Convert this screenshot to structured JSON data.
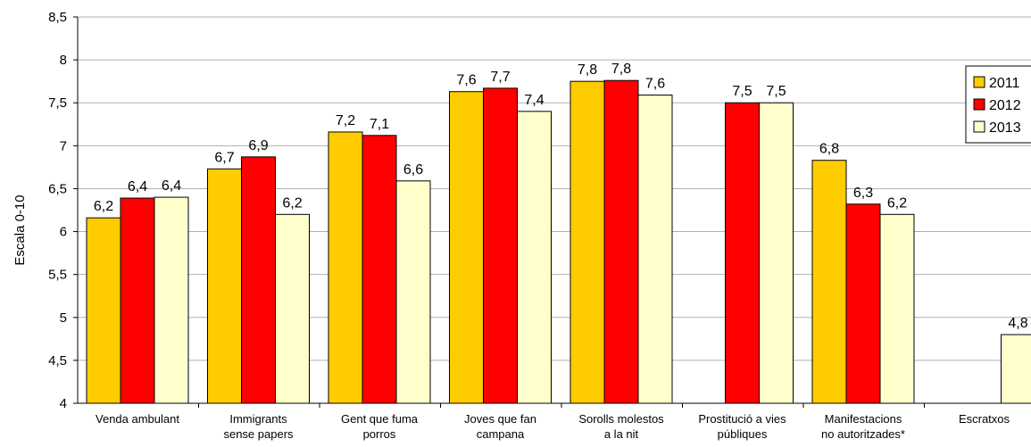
{
  "chart_data": {
    "type": "bar",
    "title": "",
    "xlabel": "",
    "ylabel": "Escala 0-10",
    "ylim": [
      4,
      8.5
    ],
    "yticks": [
      "4",
      "4,5",
      "5",
      "5,5",
      "6",
      "6,5",
      "7",
      "7,5",
      "8",
      "8,5"
    ],
    "grid": true,
    "legend_position": "right",
    "categories": [
      [
        "Venda ambulant"
      ],
      [
        "Immigrants",
        "sense papers"
      ],
      [
        "Gent que fuma",
        "porros"
      ],
      [
        "Joves que fan",
        "campana"
      ],
      [
        "Sorolls molestos",
        "a la nit"
      ],
      [
        "Prostitució a vies",
        "públiques"
      ],
      [
        "Manifestacions",
        "no autoritzades*"
      ],
      [
        "Escratxos"
      ]
    ],
    "series": [
      {
        "name": "2011",
        "color": "#FFCC00",
        "values": [
          6.16,
          6.73,
          7.16,
          7.63,
          7.75,
          null,
          6.83,
          null
        ],
        "labels": [
          "6,2",
          "6,7",
          "7,2",
          "7,6",
          "7,8",
          null,
          "6,8",
          null
        ]
      },
      {
        "name": "2012",
        "color": "#FF0000",
        "values": [
          6.39,
          6.87,
          7.12,
          7.67,
          7.76,
          7.5,
          6.32,
          null
        ],
        "labels": [
          "6,4",
          "6,9",
          "7,1",
          "7,7",
          "7,8",
          "7,5",
          "6,3",
          null
        ]
      },
      {
        "name": "2013",
        "color": "#FFFFCC",
        "values": [
          6.4,
          6.2,
          6.59,
          7.4,
          7.59,
          7.5,
          6.2,
          4.8
        ],
        "labels": [
          "6,4",
          "6,2",
          "6,6",
          "7,4",
          "7,6",
          "7,5",
          "6,2",
          "4,8"
        ]
      }
    ]
  }
}
